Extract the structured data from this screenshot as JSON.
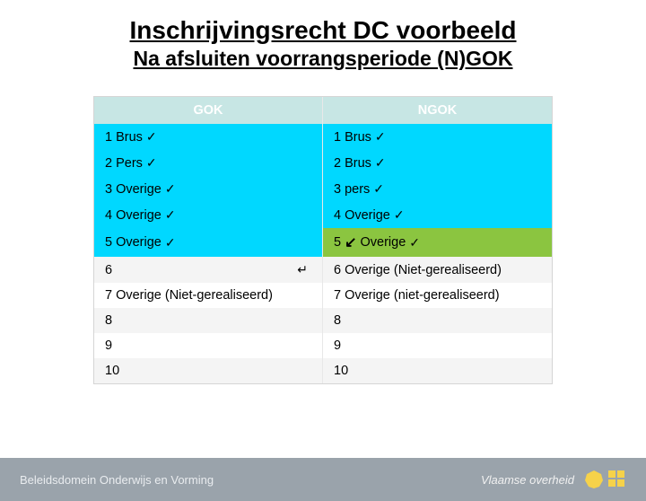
{
  "title": "Inschrijvingsrecht DC voorbeeld",
  "subtitle": "Na afsluiten voorrangsperiode (N)GOK",
  "table": {
    "headers": {
      "left": "GOK",
      "right": "NGOK"
    },
    "rows": [
      {
        "left": {
          "num": "1",
          "label": "Brus",
          "check": true,
          "bg": "cyan"
        },
        "right": {
          "num": "1",
          "label": "Brus",
          "check": true,
          "bg": "cyan"
        }
      },
      {
        "left": {
          "num": "2",
          "label": "Pers",
          "check": true,
          "bg": "cyan"
        },
        "right": {
          "num": "2",
          "label": "Brus",
          "check": true,
          "bg": "cyan"
        }
      },
      {
        "left": {
          "num": "3",
          "label": "Overige",
          "check": true,
          "bg": "cyan"
        },
        "right": {
          "num": "3",
          "label": "pers",
          "check": true,
          "bg": "cyan"
        }
      },
      {
        "left": {
          "num": "4",
          "label": "Overige",
          "check": true,
          "bg": "cyan"
        },
        "right": {
          "num": "4",
          "label": "Overige",
          "check": true,
          "bg": "cyan"
        }
      },
      {
        "left": {
          "num": "5",
          "label": "Overige",
          "check": true,
          "bg": "cyan"
        },
        "right": {
          "num": "5",
          "arrow": true,
          "label": "Overige",
          "check": true,
          "bg": "green"
        }
      },
      {
        "left": {
          "num": "6",
          "ret": true,
          "bg": "alt"
        },
        "right": {
          "num": "6",
          "label": "Overige (Niet-gerealiseerd)",
          "bg": "alt"
        }
      },
      {
        "left": {
          "num": "7",
          "label": "Overige (Niet-gerealiseerd)",
          "bg": "normal"
        },
        "right": {
          "num": "7",
          "label": "Overige (niet-gerealiseerd)",
          "bg": "normal"
        }
      },
      {
        "left": {
          "num": "8",
          "bg": "alt"
        },
        "right": {
          "num": "8",
          "bg": "alt"
        }
      },
      {
        "left": {
          "num": "9",
          "bg": "normal"
        },
        "right": {
          "num": "9",
          "bg": "normal"
        }
      },
      {
        "left": {
          "num": "10",
          "bg": "alt"
        },
        "right": {
          "num": "10",
          "bg": "alt"
        }
      }
    ]
  },
  "footer": {
    "left": "Beleidsdomein Onderwijs en Vorming",
    "right": "Vlaamse overheid"
  },
  "colors": {
    "header_cell": "#c7e6e4",
    "cyan": "#00d8ff",
    "green": "#8bc540",
    "alt": "#f4f4f4",
    "footer_bg": "#9aa3ab",
    "lion_yellow": "#f6d24a"
  }
}
